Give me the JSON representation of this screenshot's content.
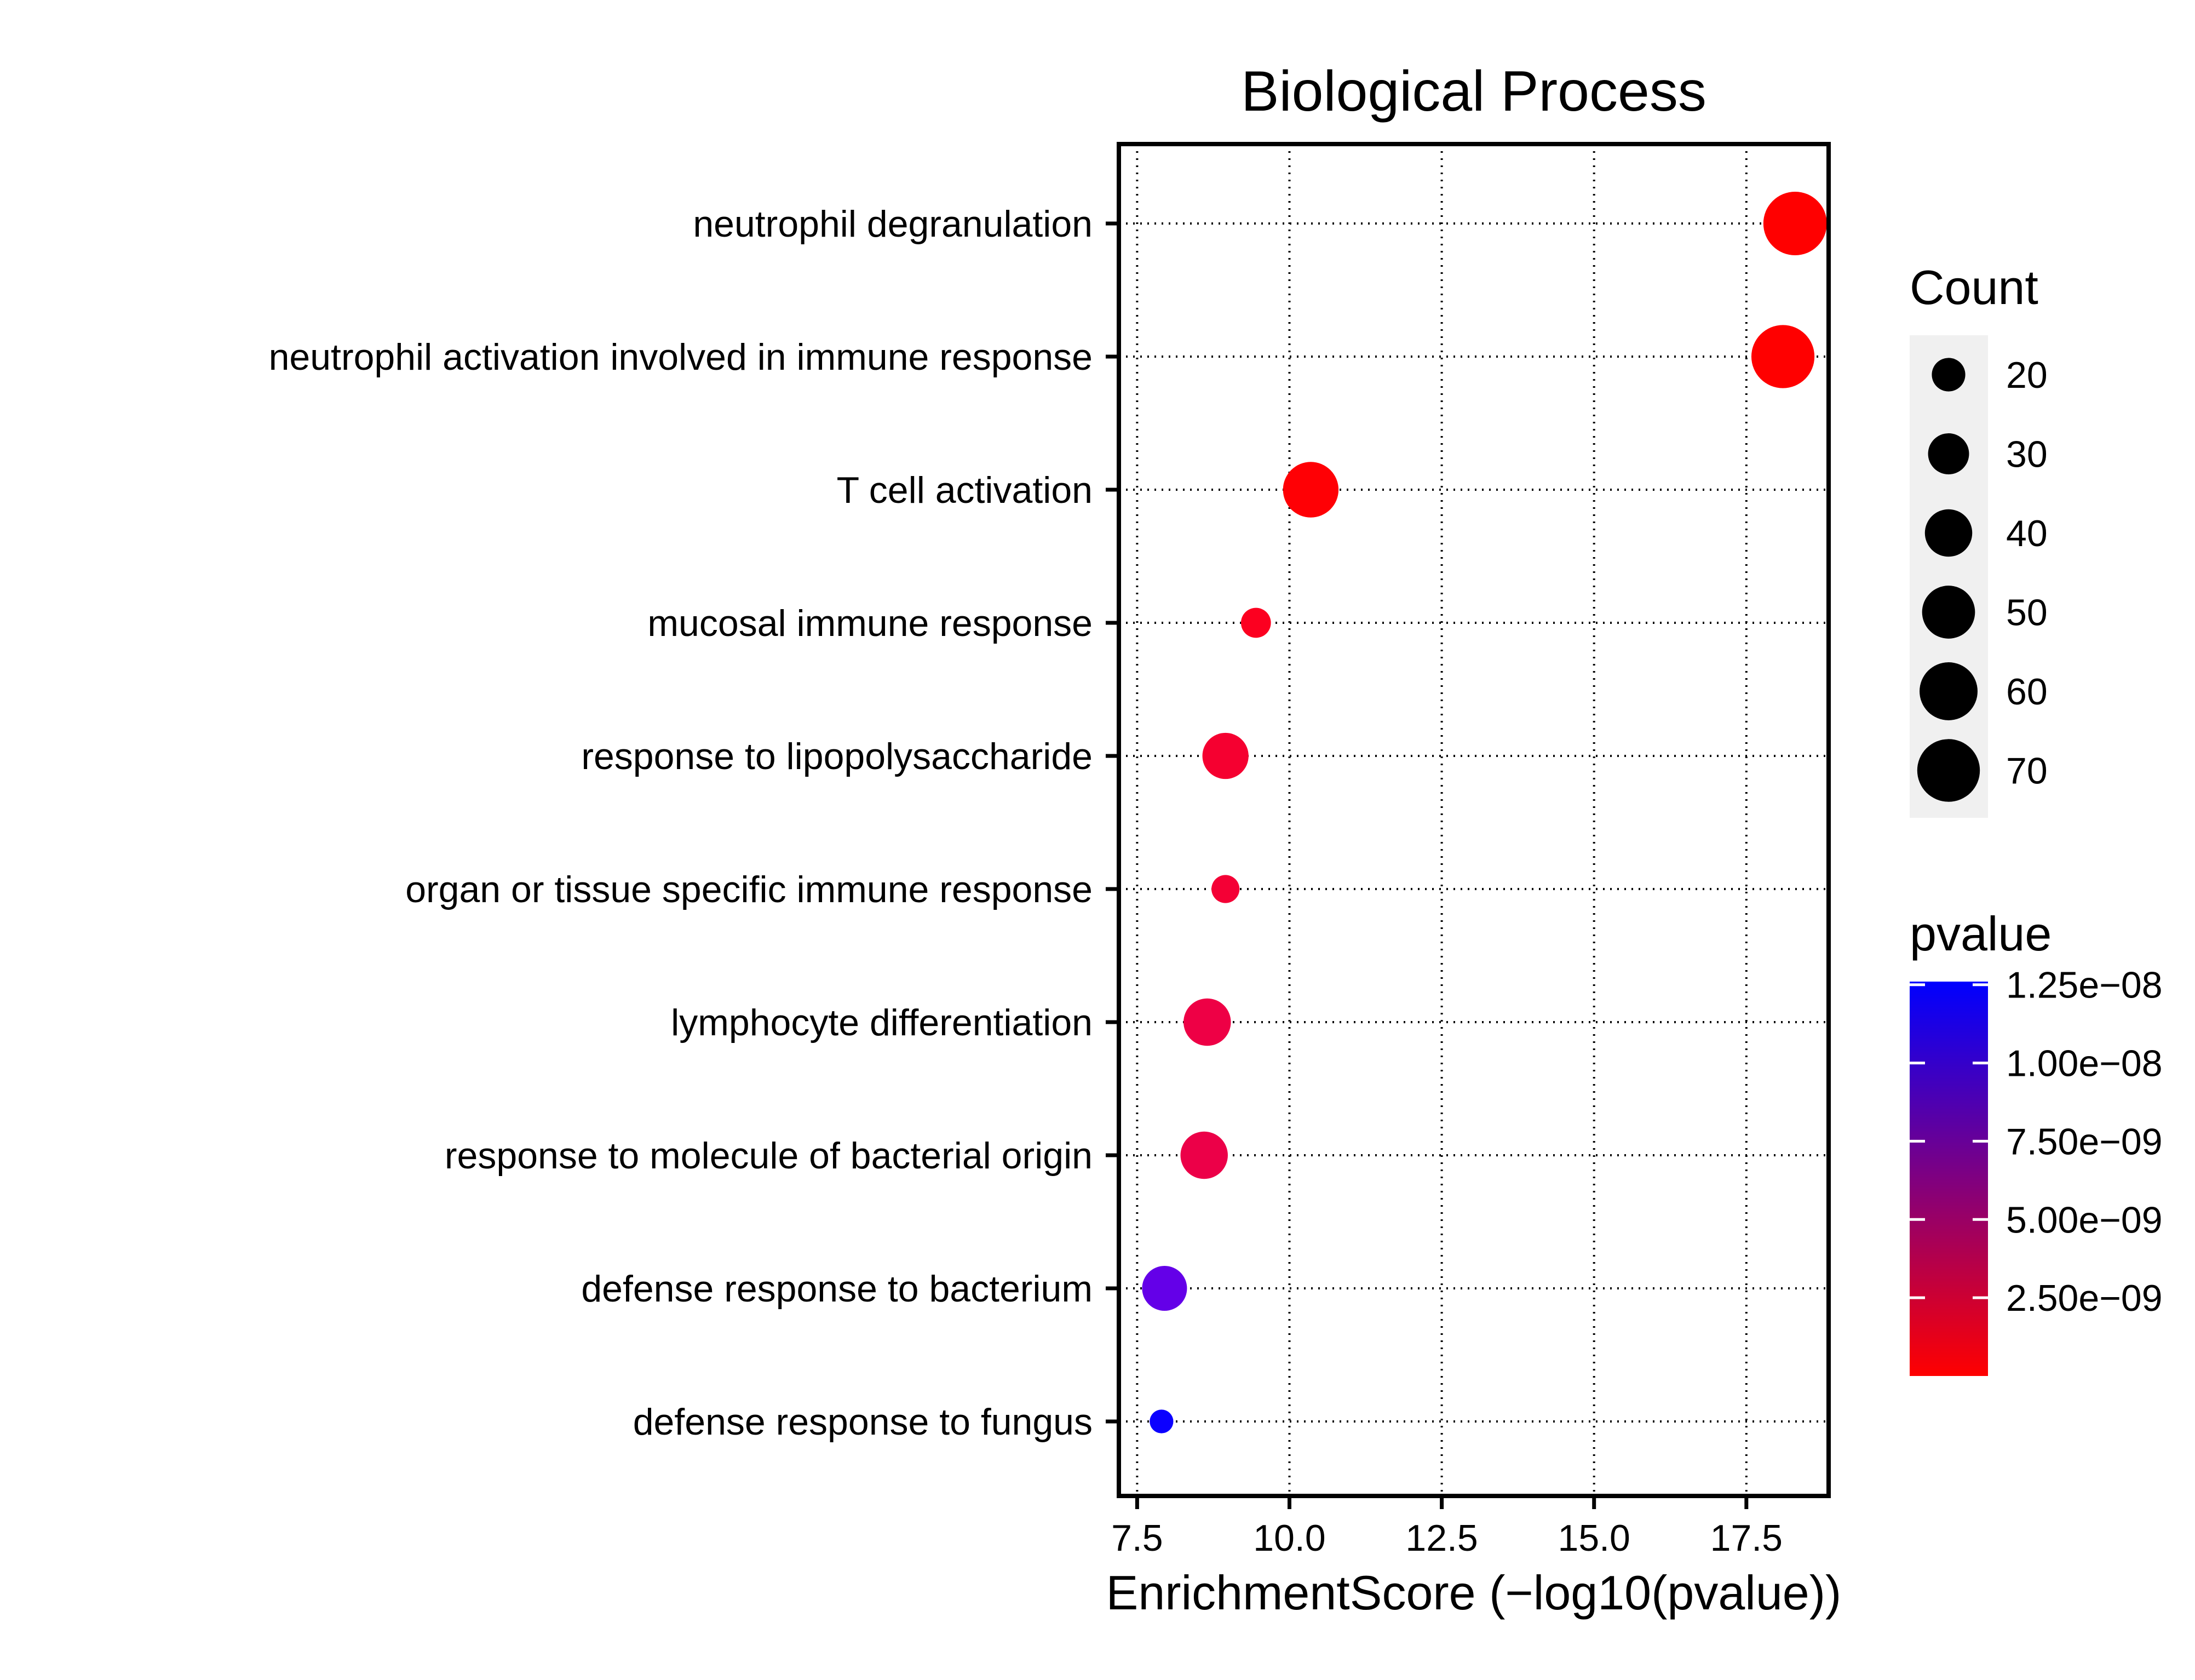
{
  "chart_data": {
    "type": "scatter",
    "title": "Biological Process",
    "xlabel": "EnrichmentScore (−log10(pvalue))",
    "ylabel": "",
    "xlim": [
      7.2,
      18.85
    ],
    "xticks": [
      7.5,
      10.0,
      12.5,
      15.0,
      17.5
    ],
    "xtick_labels": [
      "7.5",
      "10.0",
      "12.5",
      "15.0",
      "17.5"
    ],
    "grid": true,
    "categories": [
      "neutrophil degranulation",
      "neutrophil activation involved in immune response",
      "T cell activation",
      "mucosal immune response",
      "response to lipopolysaccharide",
      "organ or tissue specific immune response",
      "lymphocyte differentiation",
      "response to molecule of bacterial origin",
      "defense response to bacterium",
      "defense response to fungus"
    ],
    "points": [
      {
        "category": "neutrophil degranulation",
        "x": 18.3,
        "count": 72,
        "pvalue": 5e-19,
        "color": "#ff0000"
      },
      {
        "category": "neutrophil activation involved in immune response",
        "x": 18.1,
        "count": 71,
        "pvalue": 8e-19,
        "color": "#ff0000"
      },
      {
        "category": "T cell activation",
        "x": 10.35,
        "count": 55,
        "pvalue": 4.5e-11,
        "color": "#ff0005"
      },
      {
        "category": "mucosal immune response",
        "x": 9.45,
        "count": 16,
        "pvalue": 3.5e-10,
        "color": "#fc0020"
      },
      {
        "category": "response to lipopolysaccharide",
        "x": 8.95,
        "count": 38,
        "pvalue": 1.1e-09,
        "color": "#f50030"
      },
      {
        "category": "organ or tissue specific immune response",
        "x": 8.95,
        "count": 14,
        "pvalue": 1.1e-09,
        "color": "#f40035"
      },
      {
        "category": "lymphocyte differentiation",
        "x": 8.65,
        "count": 40,
        "pvalue": 2.2e-09,
        "color": "#ee0045"
      },
      {
        "category": "response to molecule of bacterial origin",
        "x": 8.6,
        "count": 40,
        "pvalue": 2.5e-09,
        "color": "#ec0048"
      },
      {
        "category": "defense response to bacterium",
        "x": 7.95,
        "count": 36,
        "pvalue": 1.12e-08,
        "color": "#6400e8"
      },
      {
        "category": "defense response to fungus",
        "x": 7.9,
        "count": 10,
        "pvalue": 1.26e-08,
        "color": "#0b00ff"
      }
    ],
    "legend_size": {
      "title": "Count",
      "values": [
        20,
        30,
        40,
        50,
        60,
        70
      ],
      "labels": [
        "20",
        "30",
        "40",
        "50",
        "60",
        "70"
      ]
    },
    "legend_color": {
      "title": "pvalue",
      "low_color": "#ff0000",
      "high_color": "#0000ff",
      "range": [
        5e-19,
        1.26e-08
      ],
      "breaks": [
        1.25e-08,
        1e-08,
        7.5e-09,
        5e-09,
        2.5e-09
      ],
      "labels": [
        "1.25e−08",
        "1.00e−08",
        "7.50e−09",
        "5.00e−09",
        "2.50e−09"
      ]
    },
    "legend_position": "right"
  }
}
